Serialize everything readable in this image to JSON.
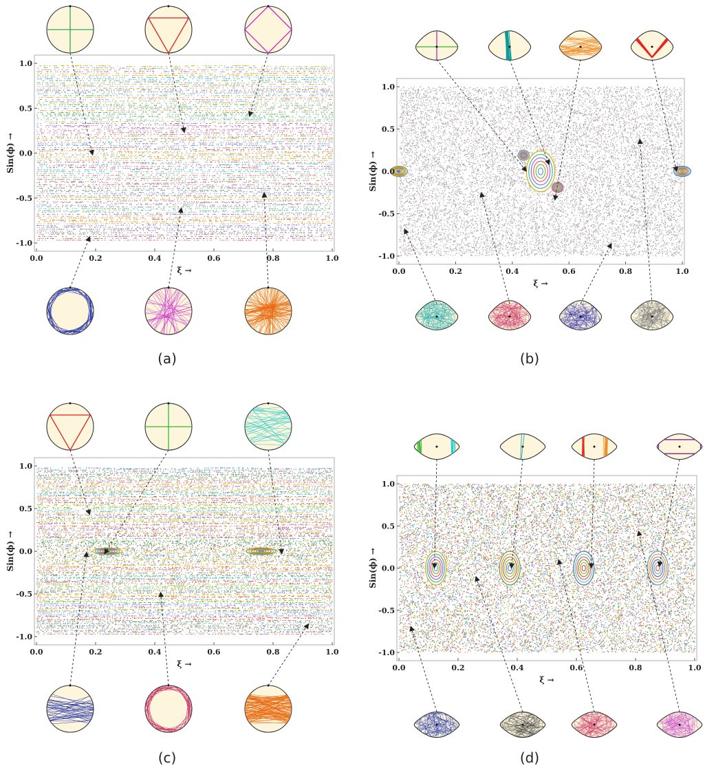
{
  "colors": {
    "table_fill": "#fdf5dc",
    "arrow": "#222222",
    "frame": "#999999",
    "axis": "#555555"
  },
  "chart_data": [
    {
      "panel": "(a)",
      "type": "scatter",
      "caption": "(a)",
      "xlabel": "ξ →",
      "ylabel": "Sin(ϕ) →",
      "xlim": [
        0,
        1
      ],
      "ylim": [
        -1,
        1
      ],
      "xticks": [
        "0.0",
        "0.2",
        "0.4",
        "0.6",
        "0.8",
        "1.0"
      ],
      "yticks": [
        "-1.0",
        "-0.5",
        "0.0",
        "0.5",
        "1.0"
      ],
      "pattern": "horizontal-bands",
      "islands": [],
      "table_shape": "circle",
      "top_insets": [
        {
          "orbit": "diameters",
          "color": "#2eaa55",
          "target": [
            0.19,
            -0.02
          ]
        },
        {
          "orbit": "triangle",
          "color": "#dd2222",
          "target": [
            0.5,
            0.23
          ]
        },
        {
          "orbit": "square",
          "color": "#cc22cc",
          "target": [
            0.72,
            0.41
          ]
        }
      ],
      "bottom_insets": [
        {
          "orbit": "whispering-gallery",
          "color": "#2233aa",
          "target": [
            0.18,
            -0.93
          ]
        },
        {
          "orbit": "star",
          "color": "#cc33cc",
          "target": [
            0.49,
            -0.61
          ]
        },
        {
          "orbit": "dense-star",
          "color": "#e86a10",
          "target": [
            0.77,
            -0.44
          ]
        }
      ]
    },
    {
      "panel": "(b)",
      "type": "scatter",
      "caption": "(b)",
      "xlabel": "ξ →",
      "ylabel": "Sin(ϕ) →",
      "xlim": [
        0,
        1
      ],
      "ylim": [
        -1,
        1
      ],
      "xticks": [
        "0.0",
        "0.2",
        "0.4",
        "0.6",
        "0.8",
        "1.0"
      ],
      "yticks": [
        "-1.0",
        "-0.5",
        "0.0",
        "0.5",
        "1.0"
      ],
      "pattern": "chaotic",
      "islands": [
        {
          "x": 0.5,
          "y": 0.0,
          "rx": 0.05,
          "ry": 0.24
        },
        {
          "x": 0.0,
          "y": 0.0,
          "rx": 0.03,
          "ry": 0.06
        },
        {
          "x": 1.0,
          "y": 0.0,
          "rx": 0.03,
          "ry": 0.06
        },
        {
          "x": 0.44,
          "y": 0.19,
          "rx": 0.02,
          "ry": 0.06
        },
        {
          "x": 0.56,
          "y": -0.19,
          "rx": 0.02,
          "ry": 0.06
        }
      ],
      "table_shape": "kidney",
      "top_insets": [
        {
          "orbit": "cross",
          "color": "#33bb33",
          "target": [
            0.45,
            0.0
          ]
        },
        {
          "orbit": "fan",
          "color": "#119999",
          "target": [
            0.53,
            0.08
          ]
        },
        {
          "orbit": "crisscross",
          "color": "#ee8822",
          "target": [
            0.55,
            -0.34
          ]
        },
        {
          "orbit": "v-shape",
          "color": "#ee2222",
          "target": [
            0.98,
            0.0
          ]
        }
      ],
      "bottom_insets": [
        {
          "orbit": "chaotic",
          "color": "#22aaaa",
          "target": [
            0.02,
            -0.68
          ]
        },
        {
          "orbit": "chaotic",
          "color": "#cc3366",
          "target": [
            0.29,
            -0.25
          ]
        },
        {
          "orbit": "chaotic",
          "color": "#3333aa",
          "target": [
            0.75,
            -0.85
          ]
        },
        {
          "orbit": "chaotic",
          "color": "#777777",
          "target": [
            0.85,
            0.38
          ]
        }
      ]
    },
    {
      "panel": "(c)",
      "type": "scatter",
      "caption": "(c)",
      "xlabel": "ξ →",
      "ylabel": "Sin(ϕ) →",
      "xlim": [
        0,
        1
      ],
      "ylim": [
        -1,
        1
      ],
      "xticks": [
        "0.0",
        "0.2",
        "0.4",
        "0.6",
        "0.8",
        "1.0"
      ],
      "yticks": [
        "-1.0",
        "-0.5",
        "0.0",
        "0.5",
        "1.0"
      ],
      "pattern": "bands-with-islands",
      "islands": [
        {
          "x": 0.24,
          "y": 0.0,
          "rx": 0.05,
          "ry": 0.04
        },
        {
          "x": 0.76,
          "y": 0.0,
          "rx": 0.05,
          "ry": 0.04
        }
      ],
      "table_shape": "circle",
      "top_insets": [
        {
          "orbit": "triangle",
          "color": "#dd2222",
          "target": [
            0.18,
            0.43
          ]
        },
        {
          "orbit": "cross",
          "color": "#33bb33",
          "target": [
            0.23,
            -0.03
          ]
        },
        {
          "orbit": "crisscross",
          "color": "#22cccc",
          "target": [
            0.83,
            -0.03
          ]
        }
      ],
      "bottom_insets": [
        {
          "orbit": "bowtie",
          "color": "#2233aa",
          "target": [
            0.17,
            -0.01
          ]
        },
        {
          "orbit": "whispering-gallery",
          "color": "#cc3366",
          "target": [
            0.42,
            -0.48
          ]
        },
        {
          "orbit": "dense-bowtie",
          "color": "#e86a10",
          "target": [
            0.92,
            -0.85
          ]
        }
      ]
    },
    {
      "panel": "(d)",
      "type": "scatter",
      "caption": "(d)",
      "xlabel": "ξ →",
      "ylabel": "Sin(ϕ) →",
      "xlim": [
        0,
        1
      ],
      "ylim": [
        -1,
        1
      ],
      "xticks": [
        "0.0",
        "0.2",
        "0.4",
        "0.6",
        "0.8",
        "1.0"
      ],
      "yticks": [
        "-1.0",
        "-0.5",
        "0.0",
        "0.5",
        "1.0"
      ],
      "pattern": "chaotic",
      "islands": [
        {
          "x": 0.125,
          "y": 0.0,
          "rx": 0.035,
          "ry": 0.2
        },
        {
          "x": 0.375,
          "y": 0.0,
          "rx": 0.035,
          "ry": 0.2
        },
        {
          "x": 0.625,
          "y": 0.0,
          "rx": 0.035,
          "ry": 0.2
        },
        {
          "x": 0.875,
          "y": 0.0,
          "rx": 0.035,
          "ry": 0.2
        }
      ],
      "table_shape": "peanut",
      "top_insets": [
        {
          "orbit": "bouncing",
          "color": "#33bb33",
          "target": [
            0.12,
            0.0
          ]
        },
        {
          "orbit": "bouncing",
          "color": "#119999",
          "target": [
            0.38,
            0.0
          ]
        },
        {
          "orbit": "bouncing",
          "color": "#dd3322",
          "target": [
            0.65,
            0.0
          ]
        },
        {
          "orbit": "rectangle",
          "color": "#882299",
          "target": [
            0.88,
            0.02
          ]
        }
      ],
      "bottom_insets": [
        {
          "orbit": "chaotic",
          "color": "#2233aa",
          "target": [
            0.04,
            -0.69
          ]
        },
        {
          "orbit": "chaotic",
          "color": "#444444",
          "target": [
            0.26,
            -0.1
          ]
        },
        {
          "orbit": "chaotic",
          "color": "#cc3366",
          "target": [
            0.54,
            0.1
          ]
        },
        {
          "orbit": "chaotic",
          "color": "#cc55cc",
          "target": [
            0.81,
            0.44
          ]
        }
      ]
    }
  ]
}
